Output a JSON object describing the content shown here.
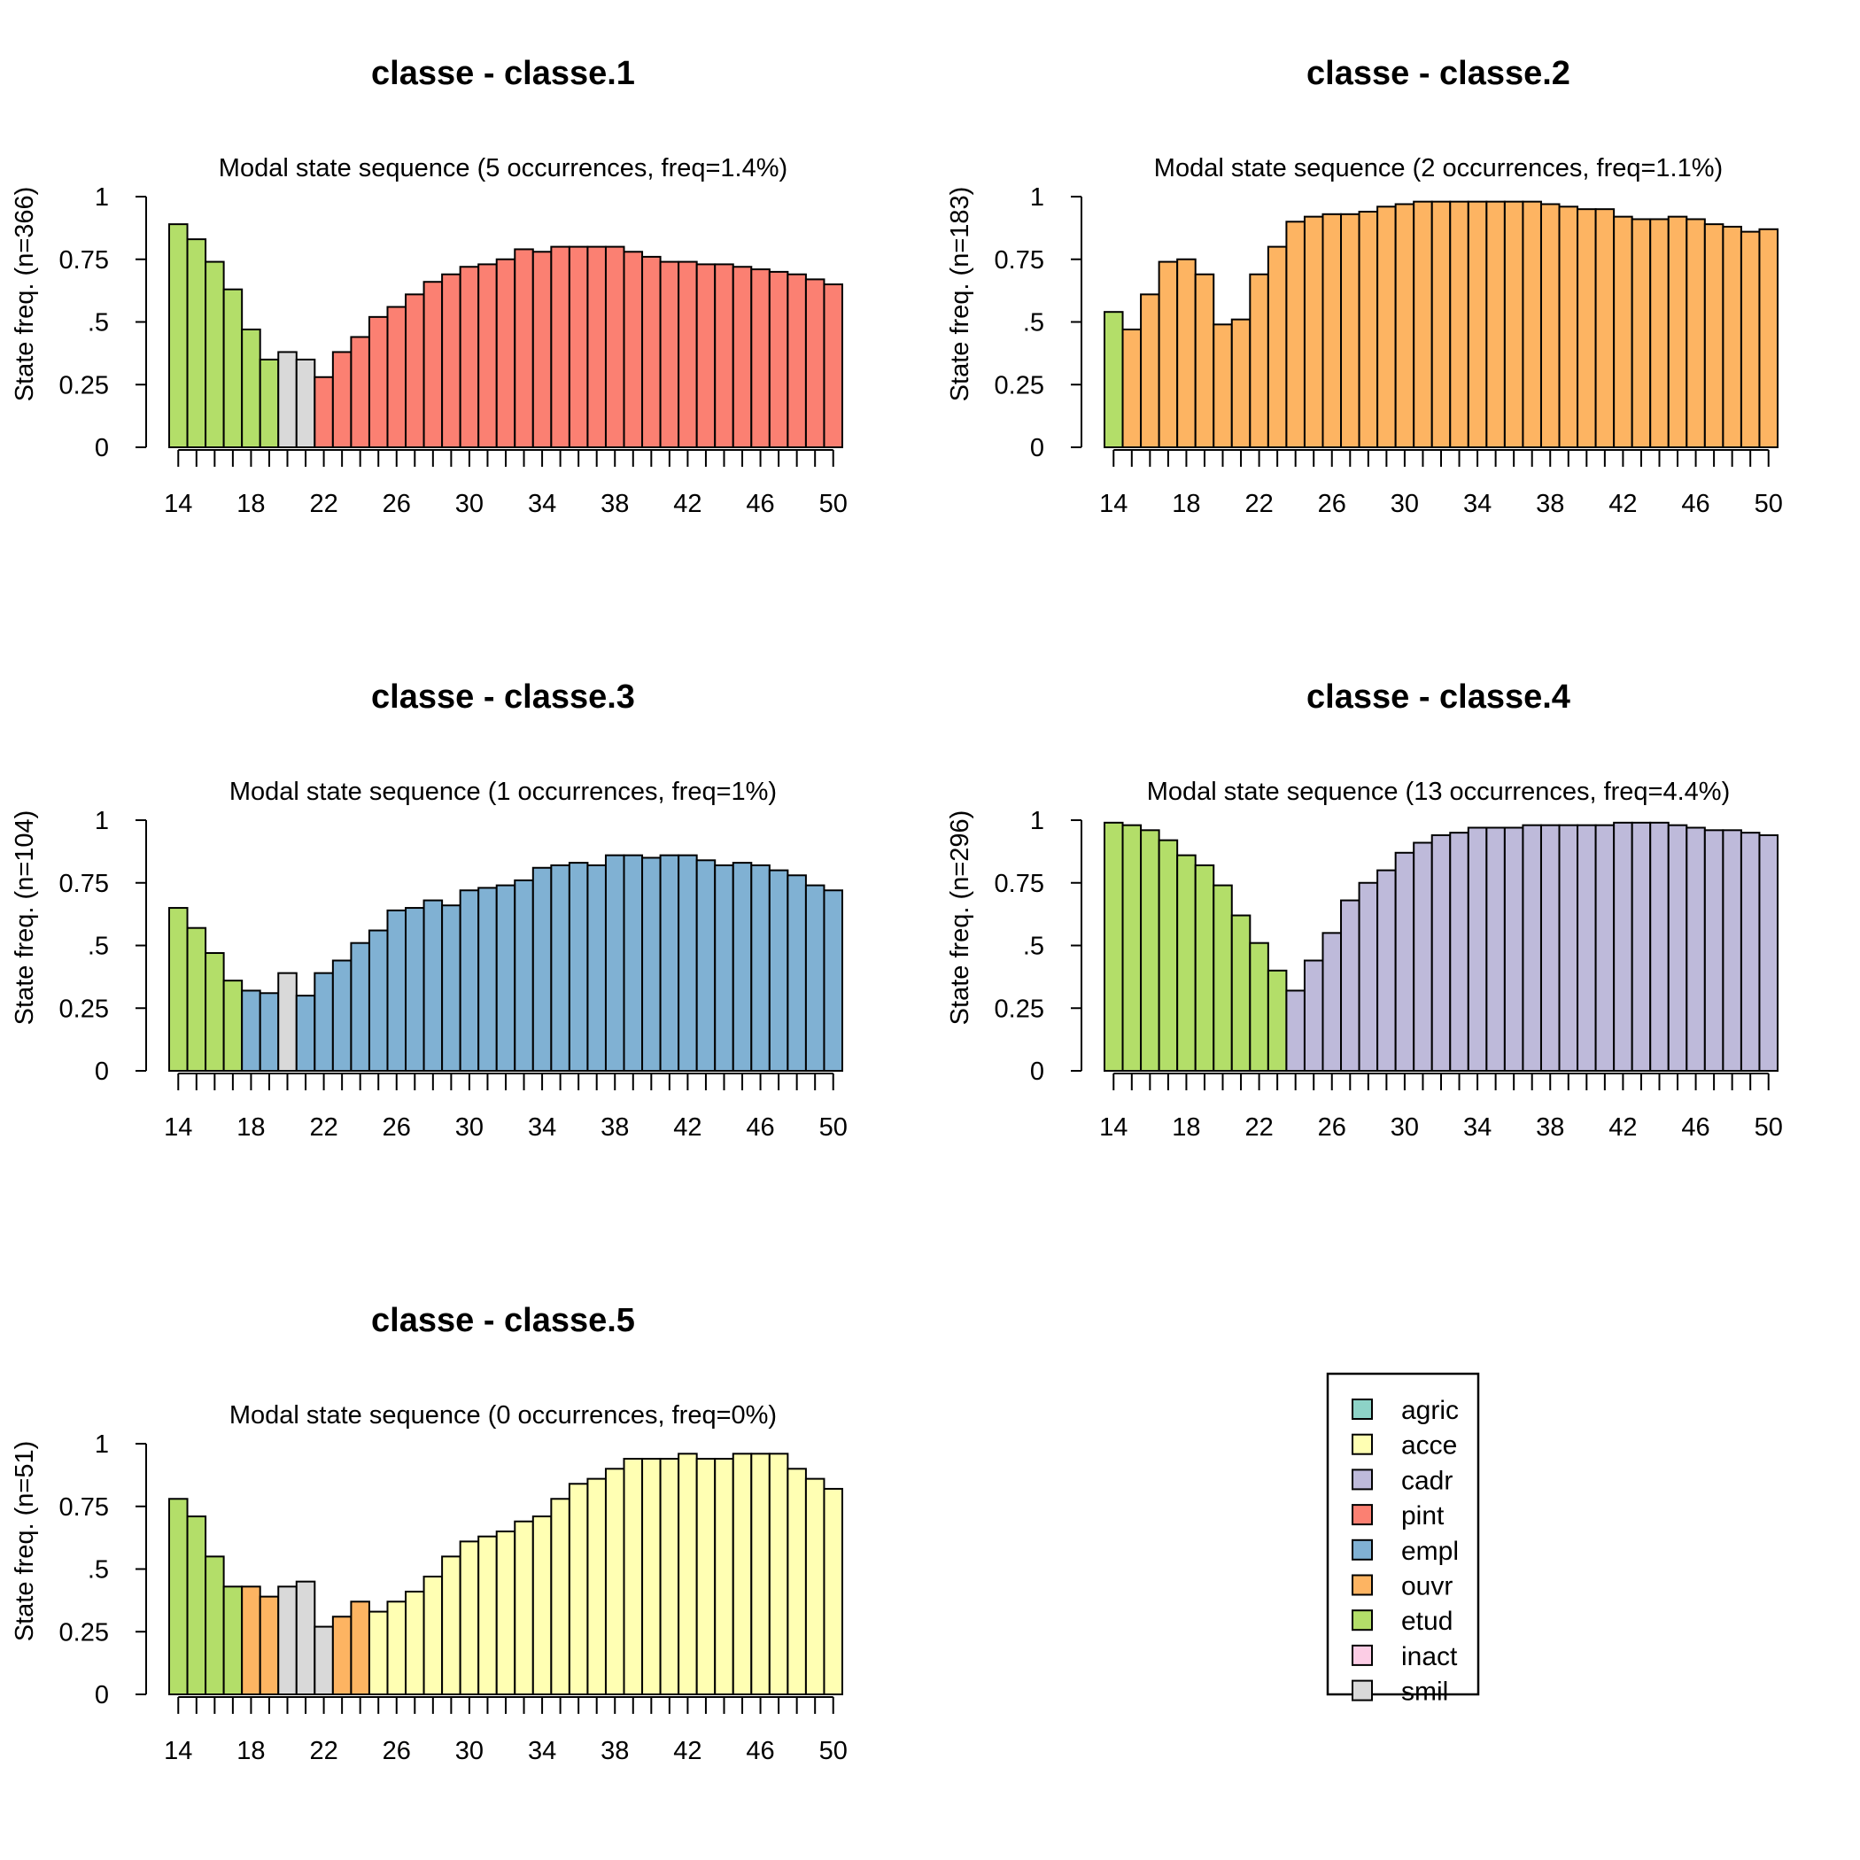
{
  "state_colors": {
    "agric": "#8DD3C7",
    "acce": "#FFFFB3",
    "cadr": "#BEBADA",
    "pint": "#FB8072",
    "empl": "#80B1D3",
    "ouvr": "#FDB462",
    "etud": "#B3DE69",
    "inact": "#FCCDE5",
    "smil": "#D9D9D9"
  },
  "chart_data": [
    {
      "type": "bar",
      "title": "classe - classe.1",
      "subtitle": "Modal state sequence (5 occurrences, freq=1.4%)",
      "ylabel": "State freq. (n=366)",
      "ylim": [
        0,
        1
      ],
      "yticks": [
        "0",
        "0.25",
        ".5",
        "0.75",
        "1"
      ],
      "xtick_labels": [
        "14",
        "18",
        "22",
        "26",
        "30",
        "34",
        "38",
        "42",
        "46",
        "50"
      ],
      "ages": [
        14,
        50
      ],
      "values": [
        0.89,
        0.83,
        0.74,
        0.63,
        0.47,
        0.35,
        0.38,
        0.35,
        0.28,
        0.38,
        0.44,
        0.52,
        0.56,
        0.61,
        0.66,
        0.69,
        0.72,
        0.73,
        0.75,
        0.79,
        0.78,
        0.8,
        0.8,
        0.8,
        0.8,
        0.78,
        0.76,
        0.74,
        0.74,
        0.73,
        0.73,
        0.72,
        0.71,
        0.7,
        0.69,
        0.67,
        0.65
      ],
      "states": [
        "etud",
        "etud",
        "etud",
        "etud",
        "etud",
        "etud",
        "smil",
        "smil",
        "pint",
        "pint",
        "pint",
        "pint",
        "pint",
        "pint",
        "pint",
        "pint",
        "pint",
        "pint",
        "pint",
        "pint",
        "pint",
        "pint",
        "pint",
        "pint",
        "pint",
        "pint",
        "pint",
        "pint",
        "pint",
        "pint",
        "pint",
        "pint",
        "pint",
        "pint",
        "pint",
        "pint",
        "pint"
      ]
    },
    {
      "type": "bar",
      "title": "classe - classe.2",
      "subtitle": "Modal state sequence (2 occurrences, freq=1.1%)",
      "ylabel": "State freq. (n=183)",
      "ylim": [
        0,
        1
      ],
      "yticks": [
        "0",
        "0.25",
        ".5",
        "0.75",
        "1"
      ],
      "xtick_labels": [
        "14",
        "18",
        "22",
        "26",
        "30",
        "34",
        "38",
        "42",
        "46",
        "50"
      ],
      "ages": [
        14,
        50
      ],
      "values": [
        0.54,
        0.47,
        0.61,
        0.74,
        0.75,
        0.69,
        0.49,
        0.51,
        0.69,
        0.8,
        0.9,
        0.92,
        0.93,
        0.93,
        0.94,
        0.96,
        0.97,
        0.98,
        0.98,
        0.98,
        0.98,
        0.98,
        0.98,
        0.98,
        0.97,
        0.96,
        0.95,
        0.95,
        0.92,
        0.91,
        0.91,
        0.92,
        0.91,
        0.89,
        0.88,
        0.86,
        0.87
      ],
      "states": [
        "etud",
        "ouvr",
        "ouvr",
        "ouvr",
        "ouvr",
        "ouvr",
        "ouvr",
        "ouvr",
        "ouvr",
        "ouvr",
        "ouvr",
        "ouvr",
        "ouvr",
        "ouvr",
        "ouvr",
        "ouvr",
        "ouvr",
        "ouvr",
        "ouvr",
        "ouvr",
        "ouvr",
        "ouvr",
        "ouvr",
        "ouvr",
        "ouvr",
        "ouvr",
        "ouvr",
        "ouvr",
        "ouvr",
        "ouvr",
        "ouvr",
        "ouvr",
        "ouvr",
        "ouvr",
        "ouvr",
        "ouvr",
        "ouvr"
      ]
    },
    {
      "type": "bar",
      "title": "classe - classe.3",
      "subtitle": "Modal state sequence (1 occurrences, freq=1%)",
      "ylabel": "State freq. (n=104)",
      "ylim": [
        0,
        1
      ],
      "yticks": [
        "0",
        "0.25",
        ".5",
        "0.75",
        "1"
      ],
      "xtick_labels": [
        "14",
        "18",
        "22",
        "26",
        "30",
        "34",
        "38",
        "42",
        "46",
        "50"
      ],
      "ages": [
        14,
        50
      ],
      "values": [
        0.65,
        0.57,
        0.47,
        0.36,
        0.32,
        0.31,
        0.39,
        0.3,
        0.39,
        0.44,
        0.51,
        0.56,
        0.64,
        0.65,
        0.68,
        0.66,
        0.72,
        0.73,
        0.74,
        0.76,
        0.81,
        0.82,
        0.83,
        0.82,
        0.86,
        0.86,
        0.85,
        0.86,
        0.86,
        0.84,
        0.82,
        0.83,
        0.82,
        0.8,
        0.78,
        0.74,
        0.72
      ],
      "states": [
        "etud",
        "etud",
        "etud",
        "etud",
        "empl",
        "empl",
        "smil",
        "empl",
        "empl",
        "empl",
        "empl",
        "empl",
        "empl",
        "empl",
        "empl",
        "empl",
        "empl",
        "empl",
        "empl",
        "empl",
        "empl",
        "empl",
        "empl",
        "empl",
        "empl",
        "empl",
        "empl",
        "empl",
        "empl",
        "empl",
        "empl",
        "empl",
        "empl",
        "empl",
        "empl",
        "empl",
        "empl"
      ]
    },
    {
      "type": "bar",
      "title": "classe - classe.4",
      "subtitle": "Modal state sequence (13 occurrences, freq=4.4%)",
      "ylabel": "State freq. (n=296)",
      "ylim": [
        0,
        1
      ],
      "yticks": [
        "0",
        "0.25",
        ".5",
        "0.75",
        "1"
      ],
      "xtick_labels": [
        "14",
        "18",
        "22",
        "26",
        "30",
        "34",
        "38",
        "42",
        "46",
        "50"
      ],
      "ages": [
        14,
        50
      ],
      "values": [
        0.99,
        0.98,
        0.96,
        0.92,
        0.86,
        0.82,
        0.74,
        0.62,
        0.51,
        0.4,
        0.32,
        0.44,
        0.55,
        0.68,
        0.75,
        0.8,
        0.87,
        0.91,
        0.94,
        0.95,
        0.97,
        0.97,
        0.97,
        0.98,
        0.98,
        0.98,
        0.98,
        0.98,
        0.99,
        0.99,
        0.99,
        0.98,
        0.97,
        0.96,
        0.96,
        0.95,
        0.94
      ],
      "states": [
        "etud",
        "etud",
        "etud",
        "etud",
        "etud",
        "etud",
        "etud",
        "etud",
        "etud",
        "etud",
        "cadr",
        "cadr",
        "cadr",
        "cadr",
        "cadr",
        "cadr",
        "cadr",
        "cadr",
        "cadr",
        "cadr",
        "cadr",
        "cadr",
        "cadr",
        "cadr",
        "cadr",
        "cadr",
        "cadr",
        "cadr",
        "cadr",
        "cadr",
        "cadr",
        "cadr",
        "cadr",
        "cadr",
        "cadr",
        "cadr",
        "cadr"
      ]
    },
    {
      "type": "bar",
      "title": "classe - classe.5",
      "subtitle": "Modal state sequence (0 occurrences, freq=0%)",
      "ylabel": "State freq. (n=51)",
      "ylim": [
        0,
        1
      ],
      "yticks": [
        "0",
        "0.25",
        ".5",
        "0.75",
        "1"
      ],
      "xtick_labels": [
        "14",
        "18",
        "22",
        "26",
        "30",
        "34",
        "38",
        "42",
        "46",
        "50"
      ],
      "ages": [
        14,
        50
      ],
      "values": [
        0.78,
        0.71,
        0.55,
        0.43,
        0.43,
        0.39,
        0.43,
        0.45,
        0.27,
        0.31,
        0.37,
        0.33,
        0.37,
        0.41,
        0.47,
        0.55,
        0.61,
        0.63,
        0.65,
        0.69,
        0.71,
        0.78,
        0.84,
        0.86,
        0.9,
        0.94,
        0.94,
        0.94,
        0.96,
        0.94,
        0.94,
        0.96,
        0.96,
        0.96,
        0.9,
        0.86,
        0.82
      ],
      "states": [
        "etud",
        "etud",
        "etud",
        "etud",
        "ouvr",
        "ouvr",
        "smil",
        "smil",
        "smil",
        "ouvr",
        "ouvr",
        "acce",
        "acce",
        "acce",
        "acce",
        "acce",
        "acce",
        "acce",
        "acce",
        "acce",
        "acce",
        "acce",
        "acce",
        "acce",
        "acce",
        "acce",
        "acce",
        "acce",
        "acce",
        "acce",
        "acce",
        "acce",
        "acce",
        "acce",
        "acce",
        "acce",
        "acce"
      ]
    }
  ],
  "legend": {
    "position": "lower-right",
    "entries": [
      "agric",
      "acce",
      "cadr",
      "pint",
      "empl",
      "ouvr",
      "etud",
      "inact",
      "smil"
    ]
  }
}
